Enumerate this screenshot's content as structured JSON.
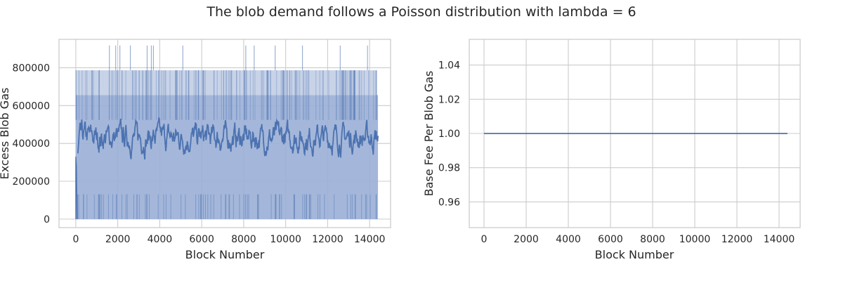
{
  "figure": {
    "title": "The blob demand follows a Poisson distribution with lambda = 6"
  },
  "colors": {
    "series": "#4c72b0",
    "fill": "#9aafd6",
    "grid": "#cccccc",
    "text": "#262626"
  },
  "chart_data": [
    {
      "type": "line",
      "title": "",
      "xlabel": "Block Number",
      "ylabel": "Excess Blob Gas",
      "xlim": [
        -800,
        15000
      ],
      "ylim": [
        -45000,
        950000
      ],
      "xticks": [
        0,
        2000,
        4000,
        6000,
        8000,
        10000,
        12000,
        14000
      ],
      "xtick_labels": [
        "0",
        "2000",
        "4000",
        "6000",
        "8000",
        "10000",
        "12000",
        "14000"
      ],
      "yticks": [
        0,
        200000,
        400000,
        600000,
        800000
      ],
      "ytick_labels": [
        "0",
        "200000",
        "400000",
        "600000",
        "800000"
      ],
      "grid": true,
      "series": [
        {
          "values_note_x_range": [
            0,
            14400
          ],
          "x_start": 0,
          "x_end": 14400,
          "band_values": [
            0,
            131072,
            262144,
            393216,
            524288,
            655360,
            786432,
            917504
          ],
          "spike_x": [
            1600,
            1900,
            2100,
            2600,
            3400,
            3600,
            3700,
            5100,
            8100,
            8500,
            9500,
            10800,
            12600,
            13900
          ],
          "smoothed_mean": 430000,
          "smoothed_range": [
            280000,
            560000
          ]
        }
      ]
    },
    {
      "type": "line",
      "title": "",
      "xlabel": "Block Number",
      "ylabel": "Base Fee Per Blob Gas",
      "xlim": [
        -700,
        15000
      ],
      "ylim": [
        0.945,
        1.055
      ],
      "xticks": [
        0,
        2000,
        4000,
        6000,
        8000,
        10000,
        12000,
        14000
      ],
      "xtick_labels": [
        "0",
        "2000",
        "4000",
        "6000",
        "8000",
        "10000",
        "12000",
        "14000"
      ],
      "yticks": [
        0.96,
        0.98,
        1.0,
        1.02,
        1.04
      ],
      "ytick_labels": [
        "0.96",
        "0.98",
        "1.00",
        "1.02",
        "1.04"
      ],
      "grid": true,
      "series": [
        {
          "x": [
            0,
            14400
          ],
          "y": [
            1.0,
            1.0
          ]
        }
      ]
    }
  ]
}
